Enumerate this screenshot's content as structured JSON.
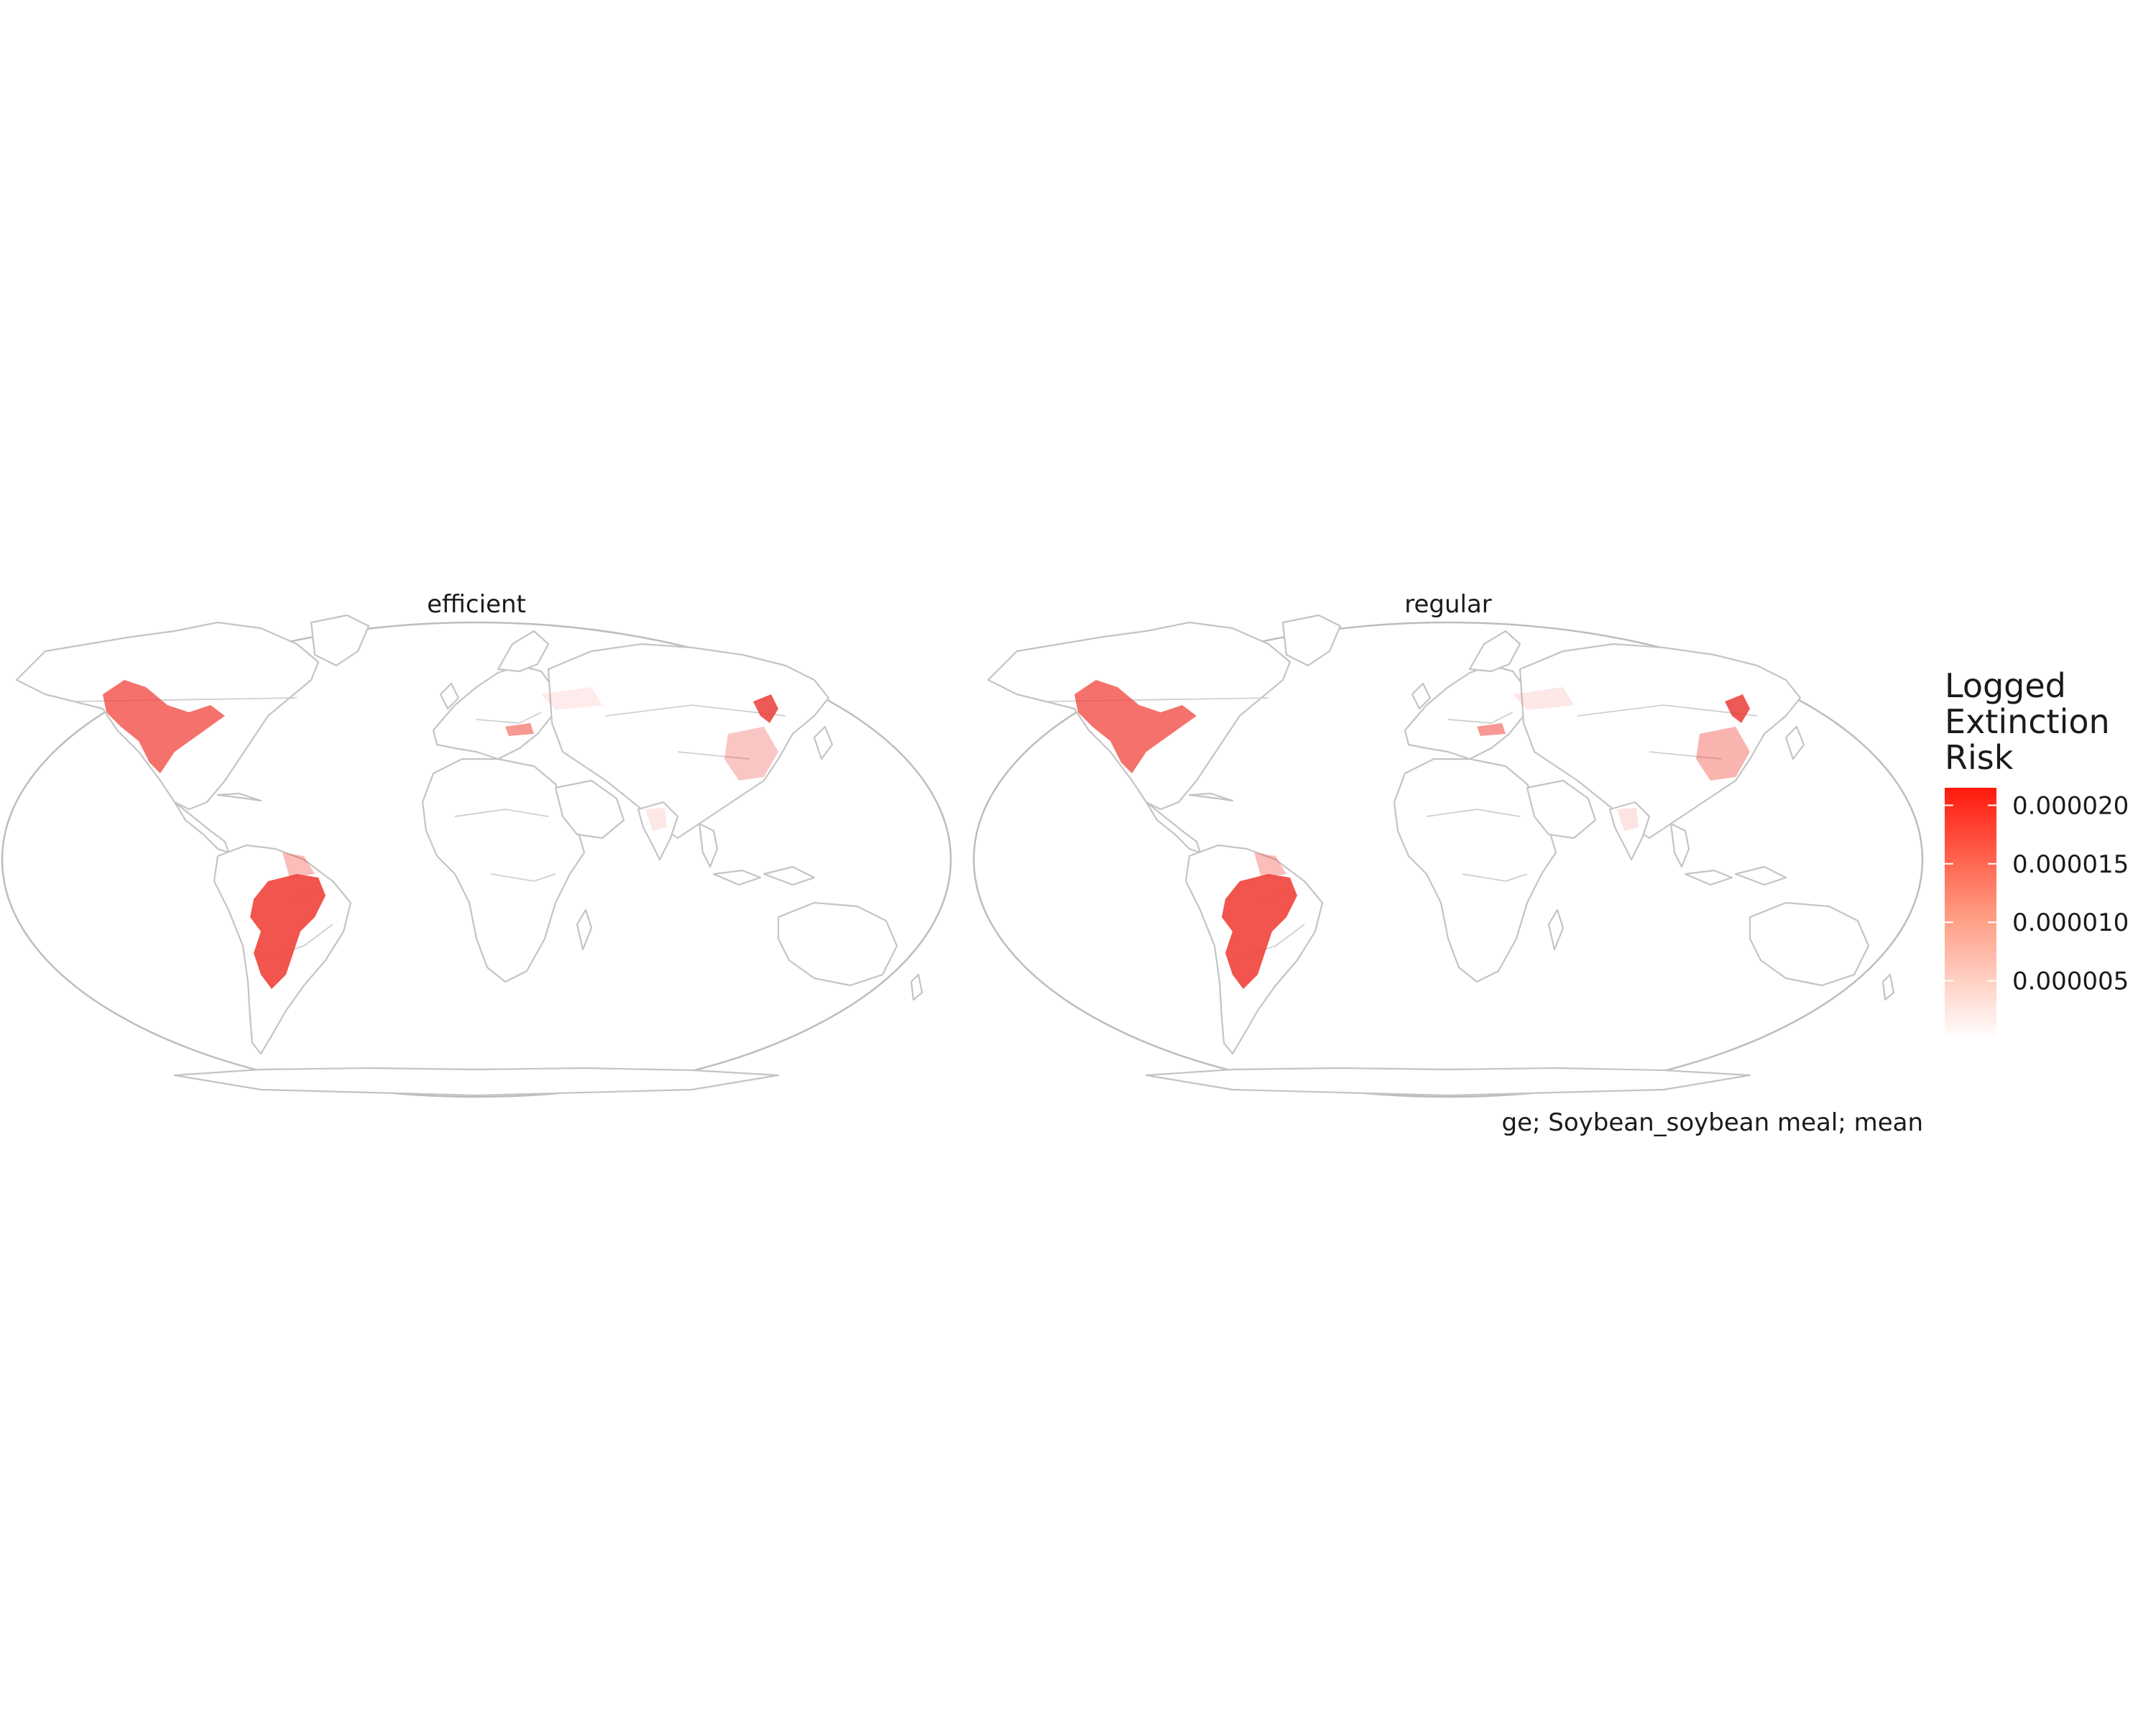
{
  "figure": {
    "caption": "ge; Soybean_soybean meal; mean"
  },
  "panels": [
    {
      "title": "efficient"
    },
    {
      "title": "regular"
    }
  ],
  "legend": {
    "title_lines": [
      "Logged",
      "Extinction",
      "Risk"
    ],
    "ticks": [
      "0.000020",
      "0.000015",
      "0.000010",
      "0.000005"
    ],
    "tick_values": [
      2e-05,
      1.5e-05,
      1e-05,
      5e-06
    ],
    "range": [
      0.0,
      2.15e-05
    ],
    "color_low": "#ffffff",
    "color_high": "#ff1a0d"
  },
  "colors": {
    "land_outline": "#c4c4c4",
    "globe_outline": "#bdbdbd",
    "hotspot": "#f0433a"
  },
  "hotspots": [
    {
      "region": "US Midwest",
      "intensity": 0.75
    },
    {
      "region": "South America (Brazil/Argentina)",
      "intensity": 0.85
    },
    {
      "region": "Northeast China",
      "intensity": 0.8
    },
    {
      "region": "East China",
      "intensity": 0.35
    },
    {
      "region": "Danube basin",
      "intensity": 0.55
    },
    {
      "region": "India",
      "intensity": 0.12
    },
    {
      "region": "Russia / Ukraine",
      "intensity": 0.1
    }
  ]
}
